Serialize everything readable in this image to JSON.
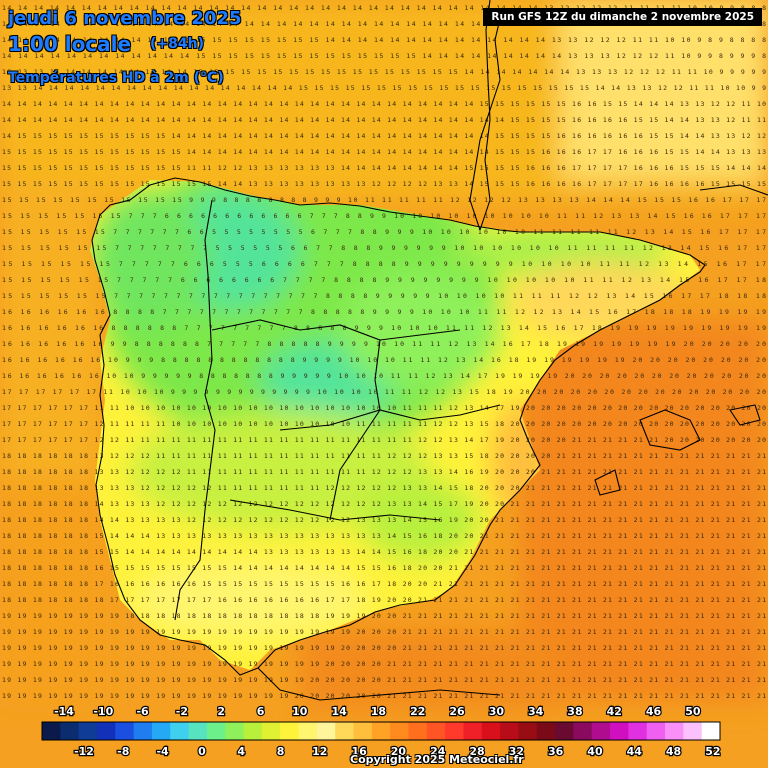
{
  "header": {
    "date": "jeudi 6 novembre 2025",
    "time": "1:00 locale",
    "offset": "(+84h)",
    "parameter": "Températures HD à 2m (°C)",
    "run": "Run GFS 12Z du dimanche 2 novembre 2025"
  },
  "footer": {
    "copyright": "Copyright 2025 Meteociel.fr"
  },
  "colors": {
    "sea_warm": "#f39019",
    "sea_mid": "#f7b71d",
    "land_green": "#7de84a",
    "land_cold": "#52e49a",
    "land_yellow": "#fff23a",
    "border": "#000000",
    "title_blue": "#1e7bff"
  },
  "legend": {
    "ticks_top": [
      "-14",
      "-10",
      "-6",
      "-2",
      "2",
      "6",
      "10",
      "14",
      "18",
      "22",
      "26",
      "30",
      "34",
      "38",
      "42",
      "46",
      "50"
    ],
    "ticks_bottom": [
      "-12",
      "-8",
      "-4",
      "0",
      "4",
      "8",
      "12",
      "16",
      "20",
      "24",
      "28",
      "32",
      "36",
      "40",
      "44",
      "48",
      "52"
    ],
    "swatches": [
      "#0a1a4a",
      "#0b2c6e",
      "#0f3c96",
      "#1330b8",
      "#1a4fe0",
      "#1f7df0",
      "#26a9f5",
      "#3fd0f0",
      "#57e3c0",
      "#6cf08a",
      "#8ef05a",
      "#b8f03c",
      "#e0f032",
      "#fff23a",
      "#fff56e",
      "#fff59a",
      "#ffd85a",
      "#ffbe3c",
      "#ffa226",
      "#ff8a1e",
      "#ff6f1e",
      "#ff5424",
      "#ff3a2a",
      "#f02028",
      "#d8101c",
      "#b80c18",
      "#980c14",
      "#7a0a18",
      "#6a0a30",
      "#8a0a60",
      "#b00c90",
      "#d010c0",
      "#e030e0",
      "#f060f0",
      "#f890f8",
      "#fcc0fc",
      "#ffffff"
    ]
  },
  "map": {
    "rows": [
      "14 14 14 14 14 14 14 14 14 14 14 14 14 14 14 14 14 14 14 14 14 14 14 14 14 14 14 14 14 14 14 14 14 14 13 12 12 12 12 11 11 11 11 10 10 9 9 8 8 8",
      "14 14 14 14 14 14 14 14 14 14 14 14 14 14 14 14 14 14 14 14 14 14 14 14 14 14 14 14 14 14 14 14 14 13 13 12 12 12 11 11 11 10 10 9 9 9 8 8 8 8",
      "14 14 14 14 14 14 14 14 14 14 14 14 15 15 15 15 15 15 15 15 14 14 14 14 14 14 14 14 14 14 14 14 14 14 13 13 12 12 12 11 11 10 10 9 8 9 8 8 8 8",
      "14 14 14 14 14 14 14 14 14 14 14 14 15 15 15 15 15 15 15 15 15 15 15 15 15 15 14 14 14 14 14 14 14 14 14 13 13 13 12 12 12 11 10 9 9 8 9 9 9 8",
      "13 13 13 14 14 14 14 14 14 14 14 14 15 15 15 15 15 15 15 15 15 15 15 15 15 15 15 15 15 14 14 14 14 14 14 14 13 13 13 12 12 12 11 11 10 9 9 9 9 9",
      "13 13 14 14 14 14 14 14 14 14 14 14 14 14 14 14 14 14 14 15 15 15 15 15 15 15 15 15 15 15 15 15 15 15 15 15 15 15 14 14 13 13 12 12 11 11 10 10 9 9",
      "14 14 14 14 14 14 14 14 14 14 14 14 14 14 14 14 14 14 14 14 14 14 14 14 14 14 14 14 14 14 14 15 15 15 15 15 15 16 16 15 15 14 14 14 13 13 12 12 11 10",
      "14 14 14 14 14 14 14 14 14 14 14 14 14 14 14 14 14 14 14 14 14 14 14 14 14 14 14 14 14 14 14 14 14 15 15 15 15 16 16 16 16 15 15 14 14 13 13 12 11 11",
      "14 15 15 15 15 15 15 15 15 15 15 14 14 14 14 14 14 14 14 14 14 14 14 14 14 14 14 14 14 14 14 14 15 15 15 15 16 16 16 16 16 16 15 15 14 14 13 13 12 12",
      "15 15 15 15 15 15 15 15 15 15 15 15 14 14 14 14 14 14 14 14 14 14 14 14 14 14 14 14 14 14 14 14 15 15 15 16 16 16 17 17 16 16 16 15 15 14 14 13 13 13",
      "15 15 15 15 15 15 15 15 15 15 15 15 11 11 12 12 13 13 13 13 13 13 14 14 14 14 14 14 14 14 15 15 15 15 16 16 16 17 17 17 17 16 16 16 15 15 15 14 14 14",
      "15 15 15 15 15 15 15 15 15 15 15 15 15 15 14 14 13 13 13 13 13 13 13 13 12 12 12 12 13 13 14 15 15 15 16 16 16 16 17 17 17 17 16 16 16 16 15 15 15 15",
      "15 15 15 15 15 15 15 15 15 15 15 9 9 9 8 8 8 8 8 8 8 8 9 9 9 10 11 11 11 11 11 12 12 12 12 13 13 13 13 14 14 14 15 15 15 16 16 17 17 17",
      "15 15 15 15 15 15 15 7 7 7 6 6 6 6 6 6 6 6 6 6 6 6 7 7 7 8 8 9 9 10 10 10 10 10 10 10 10 10 11 11 12 13 13 14 15 16 16 17 17 17",
      "15 15 15 15 15 15 7 7 7 7 7 7 6 6 5 5 5 5 5 5 5 5 6 7 7 7 8 8 9 9 9 10 10 10 10 10 10 11 11 11 11 11 12 13 14 15 16 17 17 17",
      "15 15 15 15 15 15 7 7 7 7 7 7 7 7 5 5 5 5 5 5 6 6 7 7 8 8 8 9 9 9 9 9 9 10 10 10 10 10 10 11 11 11 11 12 13 14 15 16 17 17",
      "15 15 15 15 15 15 7 7 7 7 7 6 6 6 5 5 5 6 6 6 6 7 7 7 8 8 8 8 9 9 9 9 9 9 9 9 9 10 10 10 10 11 11 12 13 14 15 16 17 17",
      "15 15 15 15 15 15 7 7 7 7 7 6 6 6 6 6 6 6 6 7 7 7 7 8 8 8 8 9 9 9 9 9 9 9 9 10 10 10 10 10 11 11 12 13 14 15 16 17 17 18",
      "15 15 15 15 15 15 7 7 7 7 7 7 7 7 7 7 7 7 7 7 7 7 7 8 8 8 8 9 9 9 9 9 10 10 10 10 11 11 11 12 12 13 14 15 16 17 17 18 18 18",
      "16 16 16 16 16 16 8 8 8 8 7 7 7 7 7 7 7 7 7 7 7 7 8 8 8 8 8 9 9 9 9 10 10 10 11 11 12 12 13 14 15 16 17 18 18 18 19 19 19 19",
      "16 16 16 16 16 16 8 8 8 8 8 8 7 7 7 7 7 7 7 7 7 8 8 8 8 8 9 9 9 10 10 10 11 11 12 13 14 15 16 17 18 19 19 19 19 19 19 19 19 19",
      "16 16 16 16 16 16 9 9 8 8 8 8 8 8 7 7 7 7 7 8 8 8 8 8 9 9 9 9 10 10 11 11 12 13 14 16 17 18 19 19 19 19 19 19 19 20 20 20 20 20",
      "16 16 16 16 16 16 10 9 9 9 8 8 8 8 8 8 8 8 8 8 8 8 9 9 9 9 10 10 10 11 11 12 13 14 16 18 19 19 19 19 19 19 20 20 20 20 20 20 20 20",
      "16 16 16 16 16 16 10 10 9 9 9 9 9 8 8 8 8 8 8 8 9 9 9 9 9 10 10 10 11 11 12 13 14 17 19 19 19 19 20 20 20 20 20 20 20 20 20 20 20 20",
      "17 17 17 17 17 17 11 10 10 10 9 9 9 9 9 9 9 9 9 9 9 9 9 10 10 10 10 11 11 12 12 13 15 18 19 20 20 20 20 20 20 20 20 20 20 20 20 20 20 20",
      "17 17 17 17 17 17 11 11 10 10 10 10 10 10 10 10 10 10 10 10 10 10 10 10 10 10 11 11 11 12 13 14 17 19 20 20 20 20 20 20 20 20 20 20 20 20 20 20 20 20",
      "17 17 17 17 17 17 12 11 11 11 11 10 10 10 10 10 10 10 10 10 10 10 10 11 11 11 11 11 12 12 13 15 18 20 20 20 20 20 20 20 20 20 20 20 20 20 20 20 20 20",
      "17 17 17 17 17 17 12 12 11 11 11 11 11 11 11 11 11 11 11 11 11 11 11 11 11 11 11 12 12 13 14 17 19 20 20 20 20 21 21 21 21 21 21 20 20 20 20 20 20 20",
      "18 18 18 18 18 18 13 12 12 12 11 11 11 11 11 11 11 11 11 11 11 11 11 11 11 12 12 12 13 13 15 18 20 20 20 20 21 21 21 21 21 21 21 21 21 21 21 21 21 21",
      "18 18 18 18 18 18 13 13 12 12 12 12 11 11 11 11 11 11 11 11 11 11 11 11 12 12 12 13 13 14 16 19 20 20 20 21 21 21 21 21 21 21 21 21 21 21 21 21 21 21",
      "18 18 18 18 18 18 13 13 13 12 12 12 12 12 11 11 11 11 11 11 11 12 12 12 12 12 13 13 14 15 18 20 20 20 21 21 21 21 21 21 21 21 21 21 21 21 21 21 21 21",
      "18 18 18 18 18 18 14 13 13 13 12 12 12 12 12 12 12 12 12 12 12 12 12 12 12 13 13 14 15 17 19 20 20 21 21 21 21 21 21 21 21 21 21 21 21 21 21 21 21 21",
      "18 18 18 18 18 18 14 14 13 13 13 13 12 12 12 12 12 12 12 12 12 12 12 13 13 13 14 15 16 19 20 20 21 21 21 21 21 21 21 21 21 21 21 21 21 21 21 21 21 21",
      "18 18 18 18 18 18 15 14 14 14 13 13 13 13 13 13 13 13 13 13 13 13 13 13 13 14 15 16 18 20 20 21 21 21 21 21 21 21 21 21 21 21 21 21 21 21 21 21 21 21",
      "18 18 18 18 18 18 15 15 14 14 14 14 14 14 14 14 14 13 13 13 13 13 13 14 14 15 16 18 20 20 21 21 21 21 21 21 21 21 21 21 21 21 21 21 21 21 21 21 21 21",
      "18 18 18 18 18 18 16 15 15 15 15 15 15 15 15 14 14 14 14 14 14 14 14 15 15 16 18 20 20 21 21 21 21 21 21 21 21 21 21 21 21 21 21 21 21 21 21 21 21 21",
      "18 18 18 18 18 18 17 16 16 16 16 16 16 15 15 15 15 15 15 15 15 15 16 16 17 18 20 20 21 21 21 21 21 21 21 21 21 21 21 21 21 21 21 21 21 21 21 21 21 21",
      "18 18 18 18 18 18 18 17 17 17 17 17 17 17 16 16 16 16 16 16 16 17 17 18 19 20 20 21 21 21 21 21 21 21 21 21 21 21 21 21 21 21 21 21 21 21 21 21 21 21",
      "19 19 19 19 19 19 19 19 18 18 18 18 18 18 18 18 18 18 18 18 18 19 19 19 20 20 21 21 21 21 21 21 21 21 21 21 21 21 21 21 21 21 21 21 21 21 21 21 21 21",
      "19 19 19 19 19 19 19 19 19 19 19 19 19 19 19 19 19 19 19 19 19 19 19 20 20 20 21 21 21 21 21 21 21 21 21 21 21 21 21 21 21 21 21 21 21 21 21 21 21 21",
      "19 19 19 19 19 19 19 19 19 19 19 19 19 19 19 19 19 19 19 19 19 19 20 20 20 20 21 21 21 21 21 21 21 21 21 21 21 21 21 21 21 21 21 21 21 21 21 21 21 21",
      "19 19 19 19 19 19 19 19 19 19 19 19 19 19 19 19 19 19 19 19 19 20 20 20 20 21 21 21 21 21 21 21 21 21 21 21 21 21 21 21 21 21 21 21 21 21 21 21 21 21",
      "19 19 19 19 19 19 19 19 19 19 19 19 19 19 19 19 19 19 19 19 20 20 20 20 20 21 21 21 21 21 21 21 21 21 21 21 21 21 21 21 21 21 21 21 21 21 21 21 21 21",
      "19 19 19 19 19 19 19 19 19 19 19 19 19 19 19 19 19 19 19 20 20 20 20 20 20 21 21 21 21 21 21 21 21 21 21 21 21 21 21 21 21 21 21 21 21 21 21 21 21 21"
    ]
  }
}
